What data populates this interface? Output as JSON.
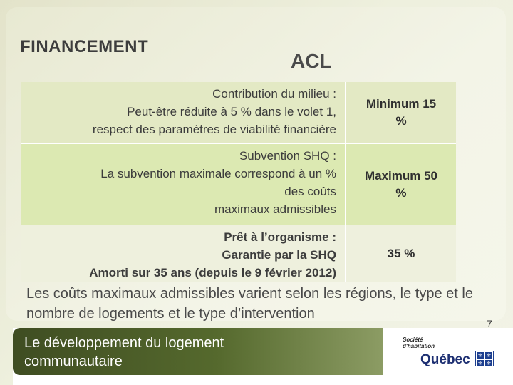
{
  "page_title": "FINANCEMENT",
  "column_title": "ACL",
  "rows": [
    {
      "description_lines": [
        "Contribution du milieu :",
        "Peut-être réduite à 5 % dans le volet 1,",
        "respect des paramètres de viabilité financière"
      ],
      "value_lines": [
        "Minimum 15",
        "%"
      ]
    },
    {
      "description_lines": [
        "Subvention SHQ :",
        "La subvention maximale correspond à un %",
        "des coûts",
        "maximaux admissibles"
      ],
      "value_lines": [
        "Maximum 50",
        "%"
      ]
    },
    {
      "description_lines": [
        "Prêt à l’organisme :",
        "Garantie par la SHQ",
        "Amorti sur 35 ans (depuis le 9 février 2012)"
      ],
      "value_lines": [
        "35 %"
      ]
    }
  ],
  "note": "Les coûts maximaux admissibles varient selon les régions, le type et le nombre de logements et le type d’intervention",
  "page_number": "7",
  "footer": {
    "lines": [
      "Le développement du logement",
      "communautaire"
    ]
  },
  "logo": {
    "top_lines": [
      "Société",
      "d'habitation"
    ],
    "name": "Québec",
    "icon": "fleur-de-lis-flag-icon"
  },
  "colors": {
    "row1": "#e3e9c4",
    "row2": "#dce9b2",
    "row3": "#eef0dd",
    "footer_band": "#4a5b27",
    "logo_blue": "#1d3f8f"
  }
}
